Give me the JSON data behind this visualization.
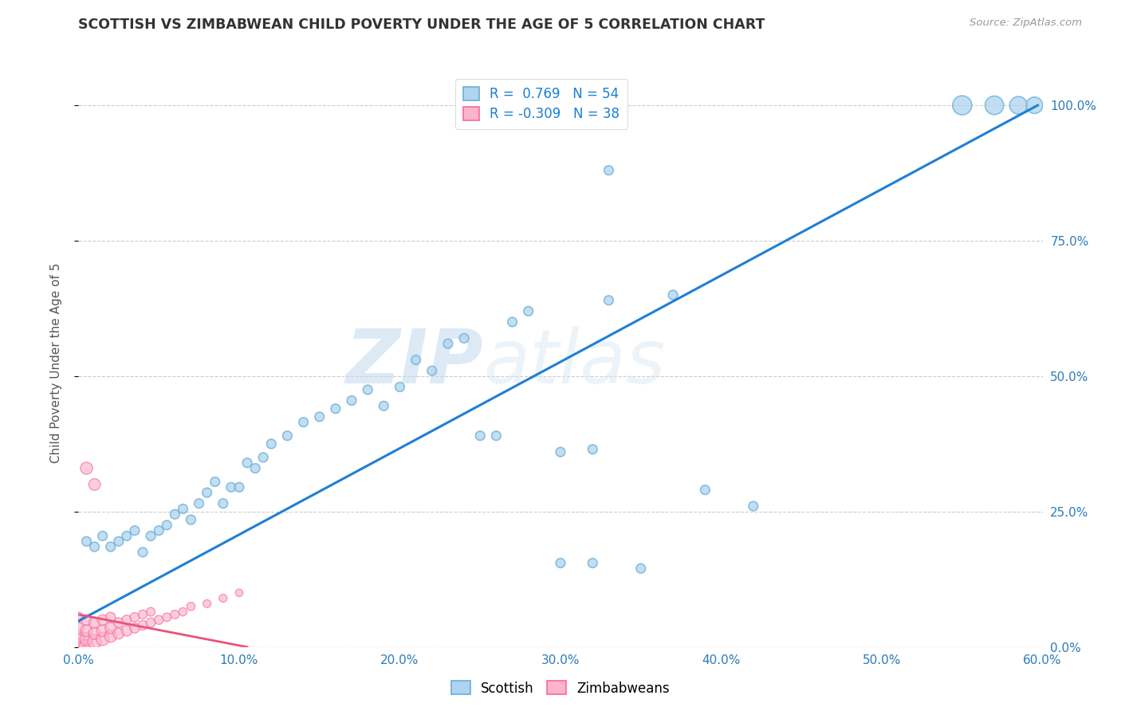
{
  "title": "SCOTTISH VS ZIMBABWEAN CHILD POVERTY UNDER THE AGE OF 5 CORRELATION CHART",
  "source": "Source: ZipAtlas.com",
  "ylabel": "Child Poverty Under the Age of 5",
  "watermark_zip": "ZIP",
  "watermark_atlas": "atlas",
  "scottish_color": "#6baed6",
  "scottish_face": "#aed4ef",
  "zimbabwean_color": "#f768a1",
  "zimbabwean_face": "#fbb4c9",
  "scottish_R": 0.769,
  "scottish_N": 54,
  "zimbabwean_R": -0.309,
  "zimbabwean_N": 38,
  "xlim": [
    0.0,
    0.6
  ],
  "ylim": [
    0.0,
    1.05
  ],
  "xtick_vals": [
    0.0,
    0.1,
    0.2,
    0.3,
    0.4,
    0.5,
    0.6
  ],
  "xtick_labels": [
    "0.0%",
    "10.0%",
    "20.0%",
    "30.0%",
    "40.0%",
    "50.0%",
    "60.0%"
  ],
  "ytick_vals": [
    0.0,
    0.25,
    0.5,
    0.75,
    1.0
  ],
  "ytick_labels": [
    "0.0%",
    "25.0%",
    "50.0%",
    "75.0%",
    "100.0%"
  ],
  "scottish_x": [
    0.005,
    0.01,
    0.015,
    0.02,
    0.025,
    0.03,
    0.035,
    0.04,
    0.045,
    0.05,
    0.055,
    0.06,
    0.065,
    0.07,
    0.075,
    0.08,
    0.085,
    0.09,
    0.095,
    0.1,
    0.105,
    0.11,
    0.115,
    0.12,
    0.13,
    0.14,
    0.15,
    0.16,
    0.17,
    0.18,
    0.19,
    0.2,
    0.21,
    0.22,
    0.23,
    0.24,
    0.25,
    0.26,
    0.27,
    0.28,
    0.3,
    0.32,
    0.33,
    0.35,
    0.37,
    0.39,
    0.3,
    0.32,
    0.55,
    0.57,
    0.585,
    0.595,
    0.33,
    0.42
  ],
  "scottish_y": [
    0.195,
    0.185,
    0.205,
    0.185,
    0.195,
    0.205,
    0.215,
    0.175,
    0.205,
    0.215,
    0.225,
    0.245,
    0.255,
    0.235,
    0.265,
    0.285,
    0.305,
    0.265,
    0.295,
    0.295,
    0.34,
    0.33,
    0.35,
    0.375,
    0.39,
    0.415,
    0.425,
    0.44,
    0.455,
    0.475,
    0.445,
    0.48,
    0.53,
    0.51,
    0.56,
    0.57,
    0.39,
    0.39,
    0.6,
    0.62,
    0.155,
    0.155,
    0.64,
    0.145,
    0.65,
    0.29,
    0.36,
    0.365,
    1.0,
    1.0,
    1.0,
    1.0,
    0.88,
    0.26
  ],
  "scottish_sizes": [
    70,
    70,
    70,
    70,
    70,
    70,
    70,
    70,
    70,
    70,
    70,
    70,
    70,
    70,
    70,
    70,
    70,
    70,
    70,
    70,
    70,
    70,
    70,
    70,
    70,
    70,
    70,
    70,
    70,
    70,
    70,
    70,
    70,
    70,
    70,
    70,
    70,
    70,
    70,
    70,
    70,
    70,
    70,
    70,
    70,
    70,
    70,
    70,
    300,
    280,
    250,
    220,
    70,
    70
  ],
  "zimbabwean_x": [
    0.0,
    0.0,
    0.0,
    0.0,
    0.0,
    0.005,
    0.005,
    0.005,
    0.005,
    0.01,
    0.01,
    0.01,
    0.015,
    0.015,
    0.015,
    0.02,
    0.02,
    0.02,
    0.025,
    0.025,
    0.03,
    0.03,
    0.035,
    0.035,
    0.04,
    0.04,
    0.045,
    0.045,
    0.05,
    0.055,
    0.06,
    0.065,
    0.07,
    0.08,
    0.09,
    0.1,
    0.005,
    0.01
  ],
  "zimbabwean_y": [
    0.0,
    0.01,
    0.02,
    0.035,
    0.055,
    0.0,
    0.015,
    0.03,
    0.05,
    0.01,
    0.025,
    0.045,
    0.015,
    0.03,
    0.05,
    0.02,
    0.035,
    0.055,
    0.025,
    0.045,
    0.03,
    0.05,
    0.035,
    0.055,
    0.04,
    0.06,
    0.045,
    0.065,
    0.05,
    0.055,
    0.06,
    0.065,
    0.075,
    0.08,
    0.09,
    0.1,
    0.33,
    0.3
  ],
  "zimbabwean_sizes": [
    200,
    160,
    130,
    100,
    80,
    180,
    140,
    110,
    90,
    160,
    120,
    100,
    140,
    110,
    90,
    120,
    100,
    80,
    100,
    80,
    90,
    75,
    80,
    70,
    75,
    65,
    70,
    60,
    65,
    60,
    60,
    55,
    55,
    50,
    50,
    45,
    120,
    110
  ],
  "blue_line_x": [
    0.0,
    0.597
  ],
  "blue_line_y": [
    0.048,
    1.0
  ],
  "red_line_x": [
    0.0,
    0.105
  ],
  "red_line_y": [
    0.06,
    0.0
  ]
}
